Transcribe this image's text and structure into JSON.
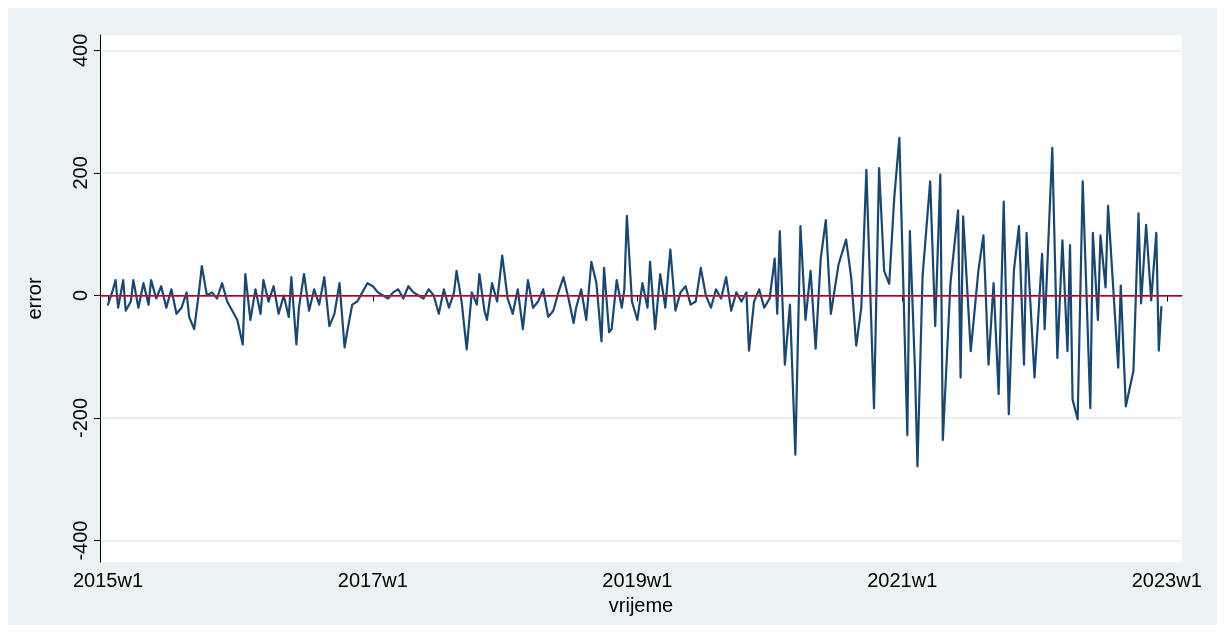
{
  "chart_data": {
    "type": "line",
    "xlabel": "vrijeme",
    "ylabel": "error",
    "xlim": [
      "2014-12-10",
      "2023-02-12"
    ],
    "ylim": [
      -435,
      425
    ],
    "xticks": [
      {
        "value": "2015-01-01",
        "label": "2015w1"
      },
      {
        "value": "2017-01-01",
        "label": "2017w1"
      },
      {
        "value": "2019-01-01",
        "label": "2019w1"
      },
      {
        "value": "2021-01-01",
        "label": "2021w1"
      },
      {
        "value": "2023-01-01",
        "label": "2023w1"
      }
    ],
    "yticks": [
      -400,
      -200,
      0,
      200,
      400
    ],
    "grid": "y",
    "marker": "none",
    "line_style": "solid",
    "ref_lines": [
      {
        "axis": "y",
        "value": 0,
        "color": "#d0103a"
      }
    ],
    "series": [
      {
        "color": "#1a476f",
        "x": [
          "2015-01-01",
          "2015-01-15",
          "2015-01-22",
          "2015-01-29",
          "2015-02-12",
          "2015-02-19",
          "2015-03-05",
          "2015-03-12",
          "2015-03-26",
          "2015-04-09",
          "2015-04-23",
          "2015-04-30",
          "2015-05-14",
          "2015-05-28",
          "2015-06-11",
          "2015-06-25",
          "2015-07-09",
          "2015-07-23",
          "2015-08-06",
          "2015-08-13",
          "2015-08-27",
          "2015-09-10",
          "2015-09-17",
          "2015-10-01",
          "2015-10-15",
          "2015-10-29",
          "2015-11-12",
          "2015-11-26",
          "2015-12-10",
          "2015-12-24",
          "2016-01-08",
          "2016-01-15",
          "2016-01-29",
          "2016-02-12",
          "2016-02-26",
          "2016-03-05",
          "2016-03-19",
          "2016-04-02",
          "2016-04-16",
          "2016-04-30",
          "2016-05-14",
          "2016-05-21",
          "2016-06-04",
          "2016-06-11",
          "2016-06-25",
          "2016-07-09",
          "2016-07-23",
          "2016-08-06",
          "2016-08-20",
          "2016-09-03",
          "2016-09-17",
          "2016-10-01",
          "2016-10-15",
          "2016-10-22",
          "2016-11-05",
          "2016-11-19",
          "2016-12-03",
          "2016-12-17",
          "2017-01-01",
          "2017-01-15",
          "2017-01-29",
          "2017-02-12",
          "2017-02-26",
          "2017-03-12",
          "2017-03-26",
          "2017-04-09",
          "2017-04-23",
          "2017-05-07",
          "2017-05-21",
          "2017-06-04",
          "2017-06-18",
          "2017-07-02",
          "2017-07-16",
          "2017-07-30",
          "2017-08-13",
          "2017-08-20",
          "2017-09-03",
          "2017-09-17",
          "2017-10-01",
          "2017-10-15",
          "2017-10-22",
          "2017-11-05",
          "2017-11-12",
          "2017-11-26",
          "2017-12-10",
          "2017-12-24",
          "2018-01-08",
          "2018-01-22",
          "2018-02-05",
          "2018-02-19",
          "2018-03-05",
          "2018-03-19",
          "2018-04-02",
          "2018-04-16",
          "2018-04-30",
          "2018-05-14",
          "2018-05-28",
          "2018-06-11",
          "2018-06-25",
          "2018-07-09",
          "2018-07-16",
          "2018-07-30",
          "2018-08-13",
          "2018-08-27",
          "2018-09-10",
          "2018-09-24",
          "2018-10-01",
          "2018-10-15",
          "2018-10-22",
          "2018-11-05",
          "2018-11-19",
          "2018-11-26",
          "2018-12-03",
          "2018-12-17",
          "2019-01-01",
          "2019-01-15",
          "2019-01-29",
          "2019-02-05",
          "2019-02-19",
          "2019-03-05",
          "2019-03-19",
          "2019-04-02",
          "2019-04-16",
          "2019-04-30",
          "2019-05-14",
          "2019-05-28",
          "2019-06-11",
          "2019-06-25",
          "2019-07-09",
          "2019-07-23",
          "2019-08-06",
          "2019-08-20",
          "2019-09-03",
          "2019-09-17",
          "2019-10-01",
          "2019-10-15",
          "2019-10-29",
          "2019-11-05",
          "2019-11-19",
          "2019-12-03",
          "2019-12-17",
          "2020-01-01",
          "2020-01-15",
          "2020-01-22",
          "2020-01-29",
          "2020-02-12",
          "2020-02-26",
          "2020-03-12",
          "2020-03-26",
          "2020-04-09",
          "2020-04-23",
          "2020-05-07",
          "2020-05-21",
          "2020-06-04",
          "2020-06-18",
          "2020-07-09",
          "2020-07-30",
          "2020-08-13",
          "2020-08-27",
          "2020-09-10",
          "2020-09-24",
          "2020-10-15",
          "2020-10-29",
          "2020-11-12",
          "2020-11-26",
          "2020-12-10",
          "2020-12-24",
          "2021-01-15",
          "2021-01-22",
          "2021-02-05",
          "2021-02-12",
          "2021-02-26",
          "2021-03-19",
          "2021-04-02",
          "2021-04-16",
          "2021-04-23",
          "2021-05-14",
          "2021-06-04",
          "2021-06-11",
          "2021-06-18",
          "2021-07-09",
          "2021-07-30",
          "2021-08-13",
          "2021-08-27",
          "2021-09-10",
          "2021-09-24",
          "2021-10-08",
          "2021-10-22",
          "2021-11-05",
          "2021-11-19",
          "2021-12-03",
          "2021-12-10",
          "2022-01-01",
          "2022-01-22",
          "2022-01-29",
          "2022-02-19",
          "2022-03-05",
          "2022-03-19",
          "2022-04-02",
          "2022-04-09",
          "2022-04-16",
          "2022-04-30",
          "2022-05-14",
          "2022-06-04",
          "2022-06-11",
          "2022-06-25",
          "2022-07-02",
          "2022-07-16",
          "2022-07-23",
          "2022-08-20",
          "2022-08-27",
          "2022-09-10",
          "2022-10-01",
          "2022-10-15",
          "2022-10-22",
          "2022-11-05",
          "2022-11-19",
          "2022-12-03",
          "2022-12-10",
          "2022-12-17"
        ],
        "values": [
          -15,
          10,
          25,
          -20,
          25,
          -25,
          -10,
          25,
          -20,
          20,
          -15,
          25,
          -5,
          15,
          -20,
          10,
          -30,
          -20,
          5,
          -35,
          -55,
          10,
          48,
          0,
          5,
          -5,
          20,
          -10,
          -25,
          -40,
          -80,
          35,
          -40,
          10,
          -30,
          25,
          -10,
          15,
          -30,
          0,
          -35,
          30,
          -80,
          -20,
          35,
          -25,
          10,
          -15,
          30,
          -50,
          -30,
          20,
          -85,
          -60,
          -15,
          -10,
          5,
          20,
          15,
          5,
          0,
          -5,
          5,
          10,
          -5,
          15,
          5,
          0,
          -5,
          10,
          0,
          -30,
          10,
          -20,
          5,
          40,
          -10,
          -88,
          5,
          -15,
          35,
          -25,
          -40,
          20,
          -10,
          65,
          -5,
          -30,
          10,
          -55,
          25,
          -20,
          -10,
          10,
          -35,
          -25,
          5,
          30,
          -5,
          -45,
          -20,
          10,
          -40,
          55,
          20,
          -75,
          45,
          -60,
          -55,
          25,
          -20,
          10,
          130,
          -10,
          -40,
          20,
          -20,
          55,
          -55,
          35,
          -20,
          75,
          -25,
          5,
          15,
          -15,
          -10,
          45,
          0,
          -20,
          10,
          -5,
          30,
          -25,
          5,
          -10,
          5,
          -90,
          -10,
          10,
          -20,
          -5,
          60,
          -30,
          105,
          -113,
          -15,
          -260,
          113,
          -40,
          40,
          -87,
          60,
          123,
          -30,
          50,
          91,
          30,
          -82,
          -20,
          205,
          -184,
          208,
          40,
          19,
          160,
          257,
          -228,
          105,
          -120,
          -279,
          31,
          186,
          -50,
          197,
          -236,
          20,
          139,
          -134,
          129,
          -91,
          40,
          98,
          -113,
          20,
          -161,
          153,
          -194,
          40,
          113,
          -113,
          102,
          -134,
          68,
          -55,
          241,
          -102,
          90,
          -91,
          82,
          -170,
          -202,
          186,
          -184,
          102,
          -40,
          98,
          13,
          146,
          -118,
          16,
          -181,
          -123,
          134,
          -13,
          115,
          -8,
          102,
          -90,
          -19
        ]
      }
    ]
  }
}
